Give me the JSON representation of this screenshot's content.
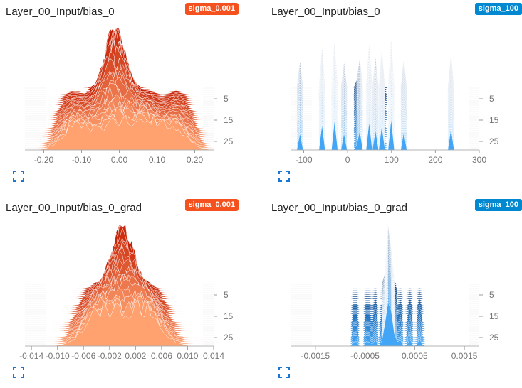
{
  "colors": {
    "orange_badge": "#F4511E",
    "blue_badge": "#0288D1",
    "orange_front": "#FFA270",
    "orange_back": "#C41C00",
    "blue_front": "#42A5F5",
    "blue_back": "#0D3C7A",
    "axis": "#9e9e9e",
    "expand_icon": "#1976D2"
  },
  "cards": [
    {
      "title": "Layer_00_Input/bias_0",
      "run": "sigma_0.001",
      "palette": "orange",
      "icon": "expand-icon",
      "chart_data": {
        "type": "histogram-offset",
        "xlim": [
          -0.25,
          0.25
        ],
        "x_ticks": [
          "-0.20",
          "-0.10",
          "0.00",
          "0.10",
          "0.20"
        ],
        "x_tick_values": [
          -0.2,
          -0.1,
          0.0,
          0.1,
          0.2
        ],
        "y_ticks": [
          "5",
          "15",
          "25"
        ],
        "y_tick_values": [
          5,
          15,
          25
        ],
        "steps": [
          0,
          29
        ],
        "series": [
          {
            "mode": "gauss",
            "center": -0.01,
            "width": 0.035,
            "peak": 1.0,
            "multi_peaks": [
              -0.12,
              0.08,
              0.15
            ]
          }
        ]
      }
    },
    {
      "title": "Layer_00_Input/bias_0",
      "run": "sigma_100",
      "palette": "blue",
      "icon": "expand-icon",
      "chart_data": {
        "type": "histogram-offset",
        "xlim": [
          -130,
          300
        ],
        "x_ticks": [
          "-100",
          "0",
          "100",
          "200",
          "300"
        ],
        "x_tick_values": [
          -100,
          0,
          100,
          200,
          300
        ],
        "y_ticks": [
          "5",
          "15",
          "25"
        ],
        "y_tick_values": [
          5,
          15,
          25
        ],
        "steps": [
          0,
          29
        ],
        "series": [
          {
            "mode": "spikes",
            "spikes": [
              -110,
              -60,
              -30,
              -10,
              25,
              50,
              65,
              80,
              100,
              130,
              235
            ]
          }
        ]
      }
    },
    {
      "title": "Layer_00_Input/bias_0_grad",
      "run": "sigma_0.001",
      "palette": "orange",
      "icon": "expand-icon",
      "chart_data": {
        "type": "histogram-offset",
        "xlim": [
          -0.015,
          0.014
        ],
        "x_ticks": [
          "-0.014",
          "-0.010",
          "-0.006",
          "-0.002",
          "0.002",
          "0.006",
          "0.010",
          "0.014"
        ],
        "x_tick_values": [
          -0.014,
          -0.01,
          -0.006,
          -0.002,
          0.002,
          0.006,
          0.01,
          0.014
        ],
        "y_ticks": [
          "5",
          "15",
          "25"
        ],
        "y_tick_values": [
          5,
          15,
          25
        ],
        "steps": [
          0,
          29
        ],
        "series": [
          {
            "mode": "gauss",
            "center": 0.0,
            "width": 0.0022,
            "peak": 1.0,
            "multi_peaks": [
              -0.004,
              0.004
            ]
          }
        ]
      }
    },
    {
      "title": "Layer_00_Input/bias_0_grad",
      "run": "sigma_100",
      "palette": "blue",
      "icon": "expand-icon",
      "chart_data": {
        "type": "histogram-offset",
        "xlim": [
          -0.002,
          0.0018
        ],
        "x_ticks": [
          "-0.0015",
          "-0.0005",
          "0.0005",
          "0.0015"
        ],
        "x_tick_values": [
          -0.0015,
          -0.0005,
          0.0005,
          0.0015
        ],
        "y_ticks": [
          "5",
          "15",
          "25"
        ],
        "y_tick_values": [
          5,
          15,
          25
        ],
        "steps": [
          0,
          29
        ],
        "series": [
          {
            "mode": "narrow",
            "center": -2e-05,
            "width": 6e-05,
            "scatter": [
              -0.0007,
              -0.00045,
              -0.0003,
              0.0002,
              0.0004,
              0.0006
            ]
          }
        ]
      }
    }
  ]
}
